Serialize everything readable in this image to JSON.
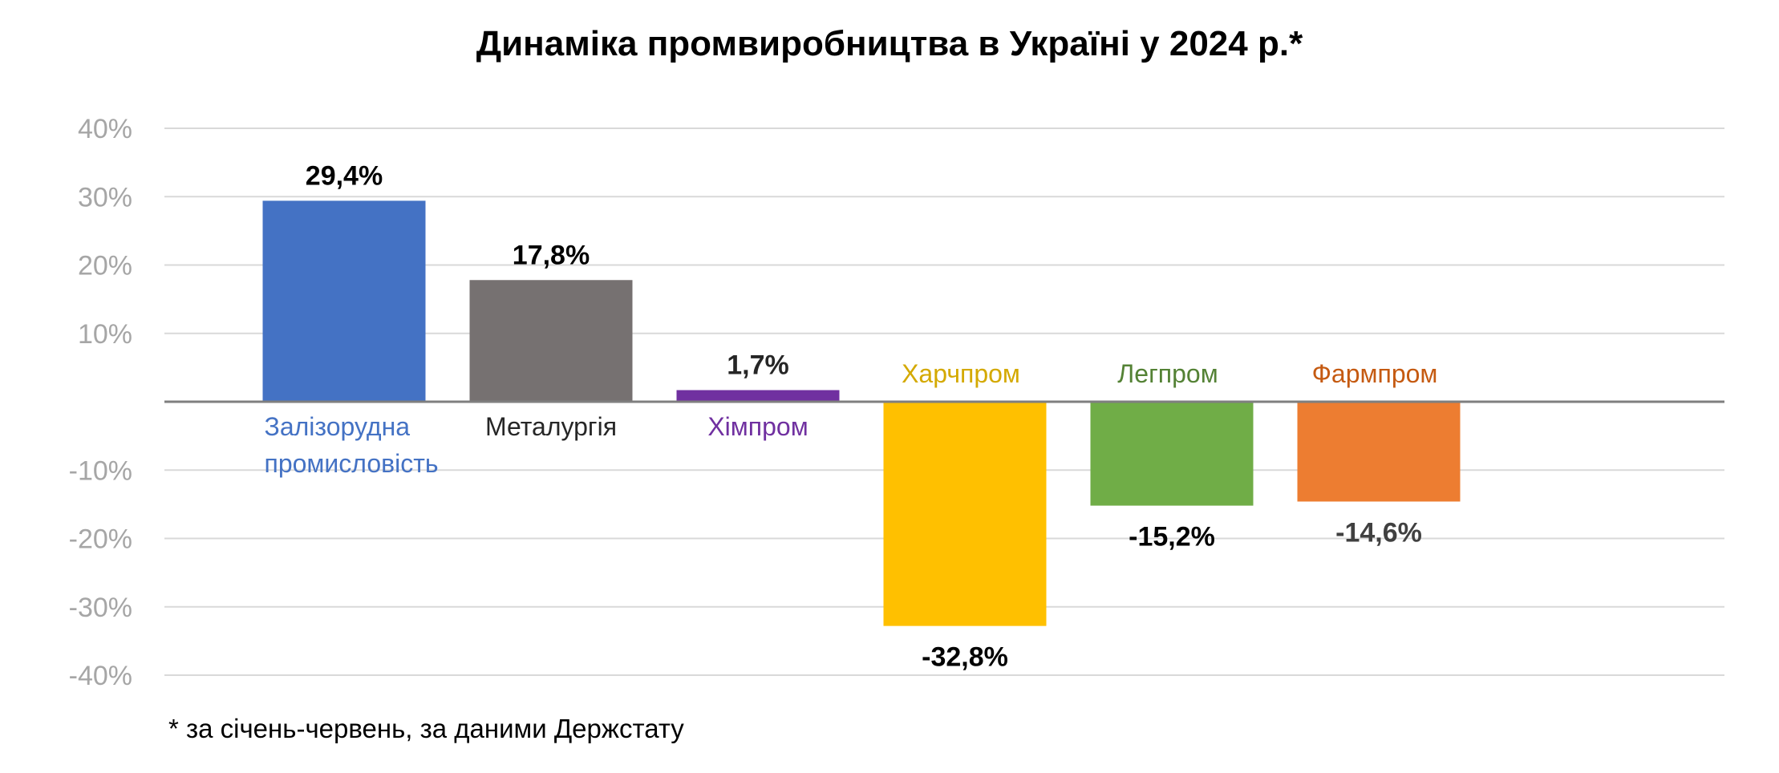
{
  "chart_data": {
    "type": "bar",
    "title": "Динаміка промвиробництва в Україні у 2024 р.*",
    "footnote": "* за січень-червень, за даними Держстату",
    "xlabel": "",
    "ylabel": "",
    "ylim": [
      -0.4,
      0.4
    ],
    "y_ticks": [
      {
        "value": 0.4,
        "label": "40%"
      },
      {
        "value": 0.3,
        "label": "30%"
      },
      {
        "value": 0.2,
        "label": "20%"
      },
      {
        "value": 0.1,
        "label": "10%"
      },
      {
        "value": -0.1,
        "label": "-10%"
      },
      {
        "value": -0.2,
        "label": "-20%"
      },
      {
        "value": -0.3,
        "label": "-30%"
      },
      {
        "value": -0.4,
        "label": "-40%"
      }
    ],
    "grid": true,
    "legend": "none",
    "bars": [
      {
        "category": [
          "Залізорудна",
          "промисловість"
        ],
        "value": 0.294,
        "label": "29,4%",
        "color": "#4472c4",
        "label_color": "#000000",
        "category_color": "#4472c4"
      },
      {
        "category": [
          "Металургія"
        ],
        "value": 0.178,
        "label": "17,8%",
        "color": "#767171",
        "label_color": "#000000",
        "category_color": "#262626"
      },
      {
        "category": [
          "Хімпром"
        ],
        "value": 0.017,
        "label": "1,7%",
        "color": "#7030a0",
        "label_color": "#262626",
        "category_color": "#7030a0"
      },
      {
        "category": [
          "Харчпром"
        ],
        "value": -0.328,
        "label": "-32,8%",
        "color": "#ffc000",
        "label_color": "#000000",
        "category_color": "#d4a900"
      },
      {
        "category": [
          "Легпром"
        ],
        "value": -0.152,
        "label": "-15,2%",
        "color": "#70ad47",
        "label_color": "#000000",
        "category_color": "#548235"
      },
      {
        "category": [
          "Фармпром"
        ],
        "value": -0.146,
        "label": "-14,6%",
        "color": "#ed7d31",
        "label_color": "#404040",
        "category_color": "#c55a11"
      }
    ]
  }
}
